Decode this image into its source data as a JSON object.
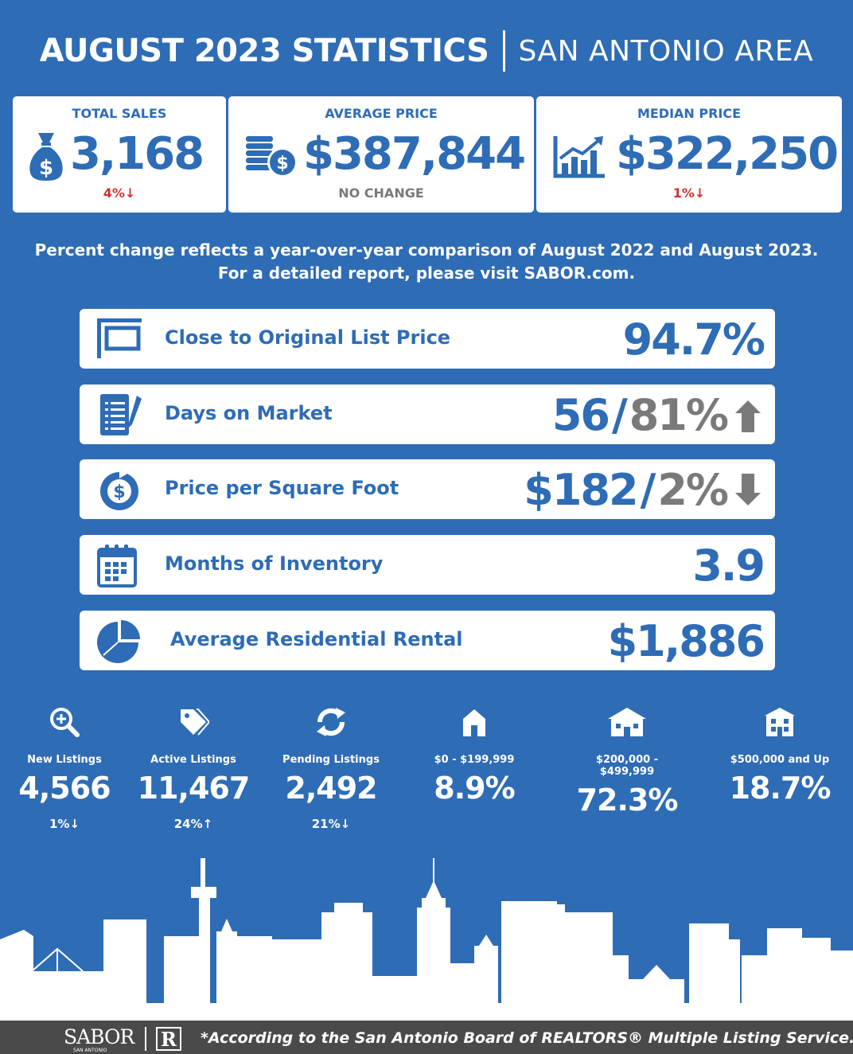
{
  "header": {
    "title": "AUGUST 2023 STATISTICS",
    "area": "SAN ANTONIO AREA"
  },
  "cards": {
    "total_sales": {
      "label": "TOTAL SALES",
      "value": "3,168",
      "change": "4%",
      "direction": "down",
      "icon": "money-bag-icon"
    },
    "average_price": {
      "label": "AVERAGE PRICE",
      "value": "$387,844",
      "change": "NO CHANGE",
      "icon": "coins-icon"
    },
    "median_price": {
      "label": "MEDIAN PRICE",
      "value": "$322,250",
      "change": "1%",
      "direction": "down",
      "icon": "growth-chart-icon"
    }
  },
  "note": {
    "line1": "Percent change reflects a year-over-year comparison of August 2022 and August 2023.",
    "line2": "For a detailed report, please visit SABOR.com."
  },
  "stats": [
    {
      "label": "Close to Original List Price",
      "value": "94.7%",
      "icon": "sign-icon"
    },
    {
      "label": "Days on Market",
      "value": "56",
      "change": "81%",
      "direction": "up",
      "icon": "checklist-icon"
    },
    {
      "label": "Price per Square Foot",
      "value": "$182",
      "change": "2%",
      "direction": "down",
      "icon": "dollar-cycle-icon"
    },
    {
      "label": "Months of Inventory",
      "value": "3.9",
      "icon": "calendar-icon"
    },
    {
      "label": "Average Residential Rental",
      "value": "$1,886",
      "icon": "pie-chart-icon"
    }
  ],
  "listings": [
    {
      "label": "New Listings",
      "value": "4,566",
      "change": "1%",
      "direction": "down",
      "icon": "magnify-plus-icon"
    },
    {
      "label": "Active Listings",
      "value": "11,467",
      "change": "24%",
      "direction": "up",
      "icon": "tag-icon"
    },
    {
      "label": "Pending Listings",
      "value": "2,492",
      "change": "21%",
      "direction": "down",
      "icon": "refresh-icon"
    },
    {
      "label": "$0 - $199,999",
      "value": "8.9%",
      "icon": "small-house-icon"
    },
    {
      "label": "$200,000 - $499,999",
      "value": "72.3%",
      "icon": "medium-house-icon"
    },
    {
      "label": "$500,000 and Up",
      "value": "18.7%",
      "icon": "large-house-icon"
    }
  ],
  "footer": {
    "logo": "SABOR",
    "logo_sub": "SAN ANTONIO",
    "realtor_mark": "R",
    "disclaimer": "*According to the San Antonio Board of REALTORS® Multiple Listing Service."
  },
  "colors": {
    "background": "#2e6cb5",
    "card": "#ffffff",
    "decrease": "#d32f2f",
    "neutral": "#7a7a7a",
    "footer": "#4a4a4a"
  }
}
